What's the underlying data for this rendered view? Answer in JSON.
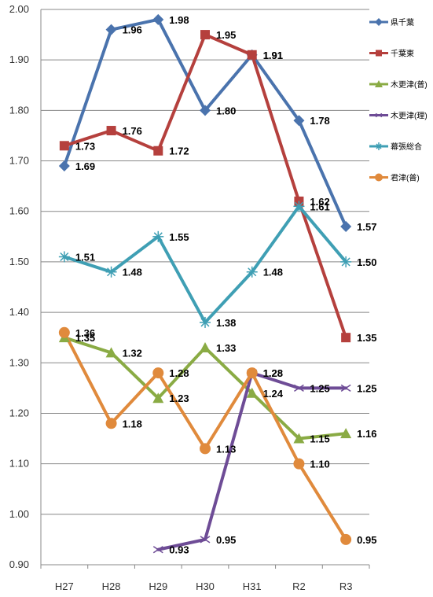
{
  "chart_data": {
    "type": "line",
    "title": "",
    "xlabel": "",
    "ylabel": "",
    "categories": [
      "H27",
      "H28",
      "H29",
      "H30",
      "H31",
      "R2",
      "R3"
    ],
    "ylim": [
      0.9,
      2.0
    ],
    "yticks": [
      "0.90",
      "1.00",
      "1.10",
      "1.20",
      "1.30",
      "1.40",
      "1.50",
      "1.60",
      "1.70",
      "1.80",
      "1.90",
      "2.00"
    ],
    "grid": "horizontal",
    "legend_position": "right",
    "series": [
      {
        "name": "県千葉",
        "color": "#4a73ad",
        "marker": "diamond",
        "values": [
          1.69,
          1.96,
          1.98,
          1.8,
          1.91,
          1.78,
          1.57
        ]
      },
      {
        "name": "千葉東",
        "color": "#b5403d",
        "marker": "square",
        "values": [
          1.73,
          1.76,
          1.72,
          1.95,
          1.91,
          1.62,
          1.35
        ]
      },
      {
        "name": "木更津(普)",
        "color": "#8aab44",
        "marker": "triangle",
        "values": [
          1.35,
          1.32,
          1.23,
          1.33,
          1.24,
          1.15,
          1.16
        ]
      },
      {
        "name": "木更津(理)",
        "color": "#6e4c96",
        "marker": "x",
        "values": [
          null,
          null,
          0.93,
          0.95,
          1.28,
          1.25,
          1.25
        ]
      },
      {
        "name": "幕張総合",
        "color": "#3f9fb4",
        "marker": "star",
        "values": [
          1.51,
          1.48,
          1.55,
          1.38,
          1.48,
          1.61,
          1.5
        ]
      },
      {
        "name": "君津(普)",
        "color": "#e08a3c",
        "marker": "circle",
        "values": [
          1.36,
          1.18,
          1.28,
          1.13,
          1.28,
          1.1,
          0.95
        ]
      }
    ]
  }
}
